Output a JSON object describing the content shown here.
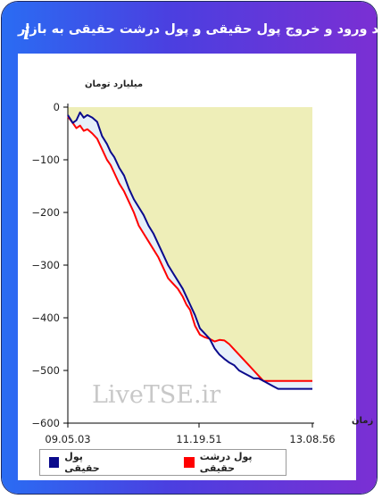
{
  "header": {
    "title": "روند ورود و خروج پول حقیقی و پول درشت حقیقی به بازار",
    "info_icon": "info-icon"
  },
  "watermark": "LiveTSE.ir",
  "chart_data": {
    "type": "line",
    "ylabel": "میلیارد تومان",
    "xlabel": "زمان",
    "ylim": [
      -600,
      0
    ],
    "yticks": [
      0,
      -100,
      -200,
      -300,
      -400,
      -500,
      -600
    ],
    "ytick_labels": [
      "0",
      "−100",
      "−200",
      "−300",
      "−400",
      "−500",
      "−600"
    ],
    "xtick_labels": [
      "09.05.03",
      "11.19.51",
      "13.08.56"
    ],
    "grid": false,
    "legend_position": "bottom",
    "fill_color": "#eeeeb8",
    "between_fill_color": "#e6f0fa",
    "x": [
      0,
      2,
      3.5,
      5,
      6.5,
      8,
      10,
      12,
      14,
      16,
      17.5,
      19,
      21,
      23,
      25,
      27,
      29,
      31,
      33,
      35,
      37,
      39,
      41,
      43,
      45,
      47,
      48.5,
      50,
      52,
      54,
      56,
      58,
      60,
      62,
      64,
      66,
      68,
      70,
      72,
      74,
      76,
      78,
      80,
      82,
      84,
      86,
      88,
      90,
      92,
      94,
      96,
      98,
      100
    ],
    "series": [
      {
        "name": "پول حقیقی",
        "color": "#0a0a8c",
        "values": [
          -15,
          -30,
          -25,
          -10,
          -20,
          -15,
          -20,
          -28,
          -55,
          -70,
          -85,
          -95,
          -115,
          -130,
          -155,
          -175,
          -190,
          -205,
          -225,
          -240,
          -260,
          -280,
          -300,
          -315,
          -330,
          -345,
          -360,
          -375,
          -395,
          -420,
          -430,
          -440,
          -458,
          -470,
          -478,
          -485,
          -490,
          -500,
          -505,
          -510,
          -515,
          -515,
          -520,
          -525,
          -530,
          -535,
          -535,
          -535,
          -535,
          -535,
          -535,
          -535,
          -535
        ]
      },
      {
        "name": "پول درشت حقیقی",
        "color": "#ff0000",
        "values": [
          -18,
          -30,
          -40,
          -35,
          -45,
          -42,
          -50,
          -60,
          -80,
          -100,
          -110,
          -125,
          -145,
          -160,
          -180,
          -200,
          -225,
          -240,
          -255,
          -270,
          -285,
          -305,
          -325,
          -335,
          -345,
          -360,
          -375,
          -385,
          -415,
          -432,
          -437,
          -440,
          -445,
          -442,
          -443,
          -450,
          -460,
          -470,
          -480,
          -490,
          -500,
          -510,
          -520,
          -520,
          -520,
          -520,
          -520,
          -520,
          -520,
          -520,
          -520,
          -520,
          -520
        ]
      }
    ]
  }
}
